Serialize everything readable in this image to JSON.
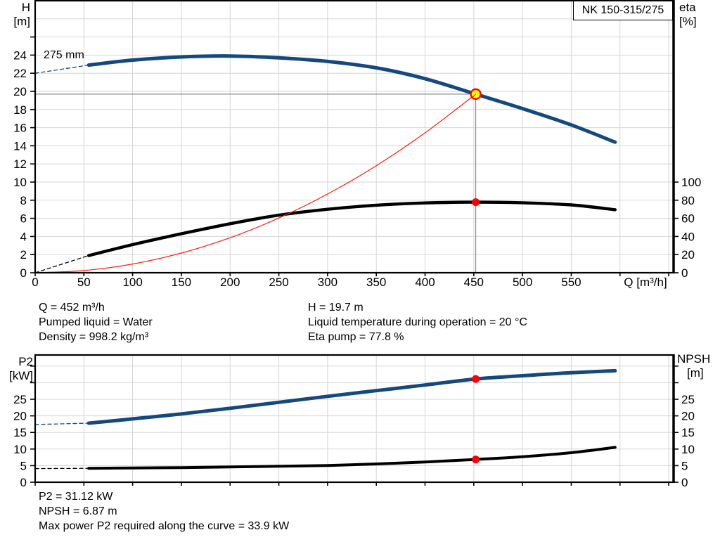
{
  "title_box": {
    "label": "NK 150-315/275"
  },
  "impeller_label": "275 mm",
  "info_top_left": [
    "Q = 452 m³/h",
    "Pumped liquid = Water",
    "Density = 998.2 kg/m³"
  ],
  "info_top_right": [
    "H = 19.7 m",
    "Liquid temperature during operation = 20 °C",
    "Eta pump = 77.8 %"
  ],
  "info_bottom": [
    "P2 = 31.12 kW",
    "NPSH = 6.87 m",
    "Max power P2 required along the curve = 33.9 kW"
  ],
  "colors": {
    "curve_blue": "#15497e",
    "curve_black": "#000000",
    "system_red": "#ff1a0d",
    "marker_red": "#ff0000",
    "duty_yellow": "#ffff00",
    "grid": "#d5d5d5",
    "axis": "#000000",
    "crosshair": "#8c8c8c",
    "background": "#ffffff"
  },
  "chart_data": [
    {
      "type": "line",
      "name": "qh-eta-chart",
      "title": "NK 150-315/275",
      "x_axis": {
        "label": "Q [m³/h]",
        "min": 0,
        "max": 655,
        "grid_step": 50,
        "label_step": 50,
        "label_max": 550,
        "unit_label_q": 604
      },
      "left_axis": {
        "title": [
          "H",
          "[m]"
        ],
        "min": 0,
        "max": 30,
        "tick_step": 2,
        "tick_max": 26,
        "label_max": 24,
        "grid_step": 2
      },
      "right_axis": {
        "title": [
          "eta",
          "[%]"
        ],
        "ticks": [
          0,
          20,
          40,
          60,
          80,
          100
        ],
        "unlabeled_ticks": [],
        "to_left_scale": 0.1
      },
      "duty_point": {
        "q": 452,
        "h": 19.7,
        "eta": 77.8
      },
      "guides": [
        {
          "type": "h",
          "value": 19.7,
          "q_from": 0,
          "q_to": 452
        },
        {
          "type": "v",
          "q": 452,
          "value_from": 0,
          "value_to": 19.7
        }
      ],
      "series": [
        {
          "name": "eta-curve-ext",
          "axis": "right",
          "color": "curve_black",
          "width": 1.3,
          "dash": true,
          "smooth": false,
          "points": [
            [
              0,
              0
            ],
            [
              55,
              19
            ]
          ]
        },
        {
          "name": "eta-curve",
          "axis": "right",
          "color": "curve_black",
          "width": 4.4,
          "dash": false,
          "smooth": true,
          "points": [
            [
              55,
              19
            ],
            [
              100,
              31
            ],
            [
              150,
              43
            ],
            [
              200,
              54
            ],
            [
              250,
              63.5
            ],
            [
              300,
              70
            ],
            [
              350,
              74.5
            ],
            [
              400,
              77
            ],
            [
              452,
              77.8
            ],
            [
              500,
              77.2
            ],
            [
              550,
              74.8
            ],
            [
              595,
              69.5
            ]
          ]
        },
        {
          "name": "qh-curve-ext",
          "axis": "left",
          "color": "curve_blue",
          "width": 1.3,
          "dash": true,
          "smooth": false,
          "points": [
            [
              0,
              22.0
            ],
            [
              55,
              22.9
            ]
          ]
        },
        {
          "name": "qh-curve",
          "axis": "left",
          "color": "curve_blue",
          "width": 5,
          "dash": false,
          "smooth": true,
          "points": [
            [
              55,
              22.9
            ],
            [
              100,
              23.45
            ],
            [
              150,
              23.8
            ],
            [
              200,
              23.9
            ],
            [
              250,
              23.7
            ],
            [
              300,
              23.3
            ],
            [
              350,
              22.6
            ],
            [
              400,
              21.4
            ],
            [
              452,
              19.7
            ],
            [
              500,
              18.1
            ],
            [
              550,
              16.3
            ],
            [
              595,
              14.4
            ]
          ]
        },
        {
          "name": "system-curve",
          "axis": "left",
          "color": "system_red",
          "width": 1.2,
          "dash": false,
          "smooth": true,
          "points": [
            [
              0,
              0
            ],
            [
              50,
              0.24
            ],
            [
              100,
              0.96
            ],
            [
              150,
              2.17
            ],
            [
              200,
              3.86
            ],
            [
              250,
              6.03
            ],
            [
              300,
              8.68
            ],
            [
              350,
              11.81
            ],
            [
              400,
              15.43
            ],
            [
              452,
              19.7
            ]
          ]
        }
      ],
      "markers": [
        {
          "name": "eta-duty-dot",
          "q": 452,
          "value": 77.8,
          "axis": "right",
          "style": "dot"
        },
        {
          "name": "duty-point",
          "q": 452,
          "value": 19.7,
          "axis": "left",
          "style": "duty"
        }
      ]
    },
    {
      "type": "line",
      "name": "p2-npsh-chart",
      "x_axis": {
        "label": "",
        "min": 0,
        "max": 655,
        "grid_step": 50,
        "label_step": 50,
        "label_max": -1,
        "unit_label_q": null
      },
      "left_axis": {
        "title": [
          "P2",
          "[kW]"
        ],
        "min": 0,
        "max": 38.35,
        "tick_step": 5,
        "tick_max": 35,
        "label_max": 25,
        "grid_step": 5
      },
      "right_axis": {
        "title": [
          "NPSH",
          "[m]"
        ],
        "ticks": [
          0,
          5,
          10,
          15,
          20,
          25
        ],
        "unlabeled_ticks": [
          30,
          35
        ],
        "to_left_scale": 1
      },
      "duty_point": {
        "q": 452,
        "p2": 31.12,
        "npsh": 6.87
      },
      "guides": [],
      "series": [
        {
          "name": "p2-curve-ext",
          "axis": "left",
          "color": "curve_blue",
          "width": 1.3,
          "dash": true,
          "smooth": false,
          "points": [
            [
              0,
              17.4
            ],
            [
              55,
              17.8
            ]
          ]
        },
        {
          "name": "p2-curve",
          "axis": "left",
          "color": "curve_blue",
          "width": 5,
          "dash": false,
          "smooth": true,
          "points": [
            [
              55,
              17.8
            ],
            [
              100,
              19.1
            ],
            [
              150,
              20.6
            ],
            [
              200,
              22.3
            ],
            [
              250,
              24.1
            ],
            [
              300,
              25.9
            ],
            [
              350,
              27.6
            ],
            [
              400,
              29.3
            ],
            [
              452,
              31.12
            ],
            [
              500,
              32.1
            ],
            [
              550,
              33.0
            ],
            [
              595,
              33.6
            ]
          ]
        },
        {
          "name": "npsh-curve-ext",
          "axis": "left",
          "color": "curve_black",
          "width": 1.3,
          "dash": true,
          "smooth": false,
          "points": [
            [
              0,
              4.1
            ],
            [
              55,
              4.2
            ]
          ]
        },
        {
          "name": "npsh-curve",
          "axis": "left",
          "color": "curve_black",
          "width": 4,
          "dash": false,
          "smooth": true,
          "points": [
            [
              55,
              4.2
            ],
            [
              100,
              4.3
            ],
            [
              150,
              4.4
            ],
            [
              200,
              4.6
            ],
            [
              250,
              4.8
            ],
            [
              300,
              5.05
            ],
            [
              350,
              5.5
            ],
            [
              400,
              6.1
            ],
            [
              452,
              6.87
            ],
            [
              500,
              7.7
            ],
            [
              550,
              8.9
            ],
            [
              595,
              10.5
            ]
          ]
        }
      ],
      "markers": [
        {
          "name": "p2-duty-dot",
          "q": 452,
          "value": 31.12,
          "axis": "left",
          "style": "dot"
        },
        {
          "name": "npsh-duty-dot",
          "q": 452,
          "value": 6.87,
          "axis": "left",
          "style": "dot"
        }
      ]
    }
  ]
}
